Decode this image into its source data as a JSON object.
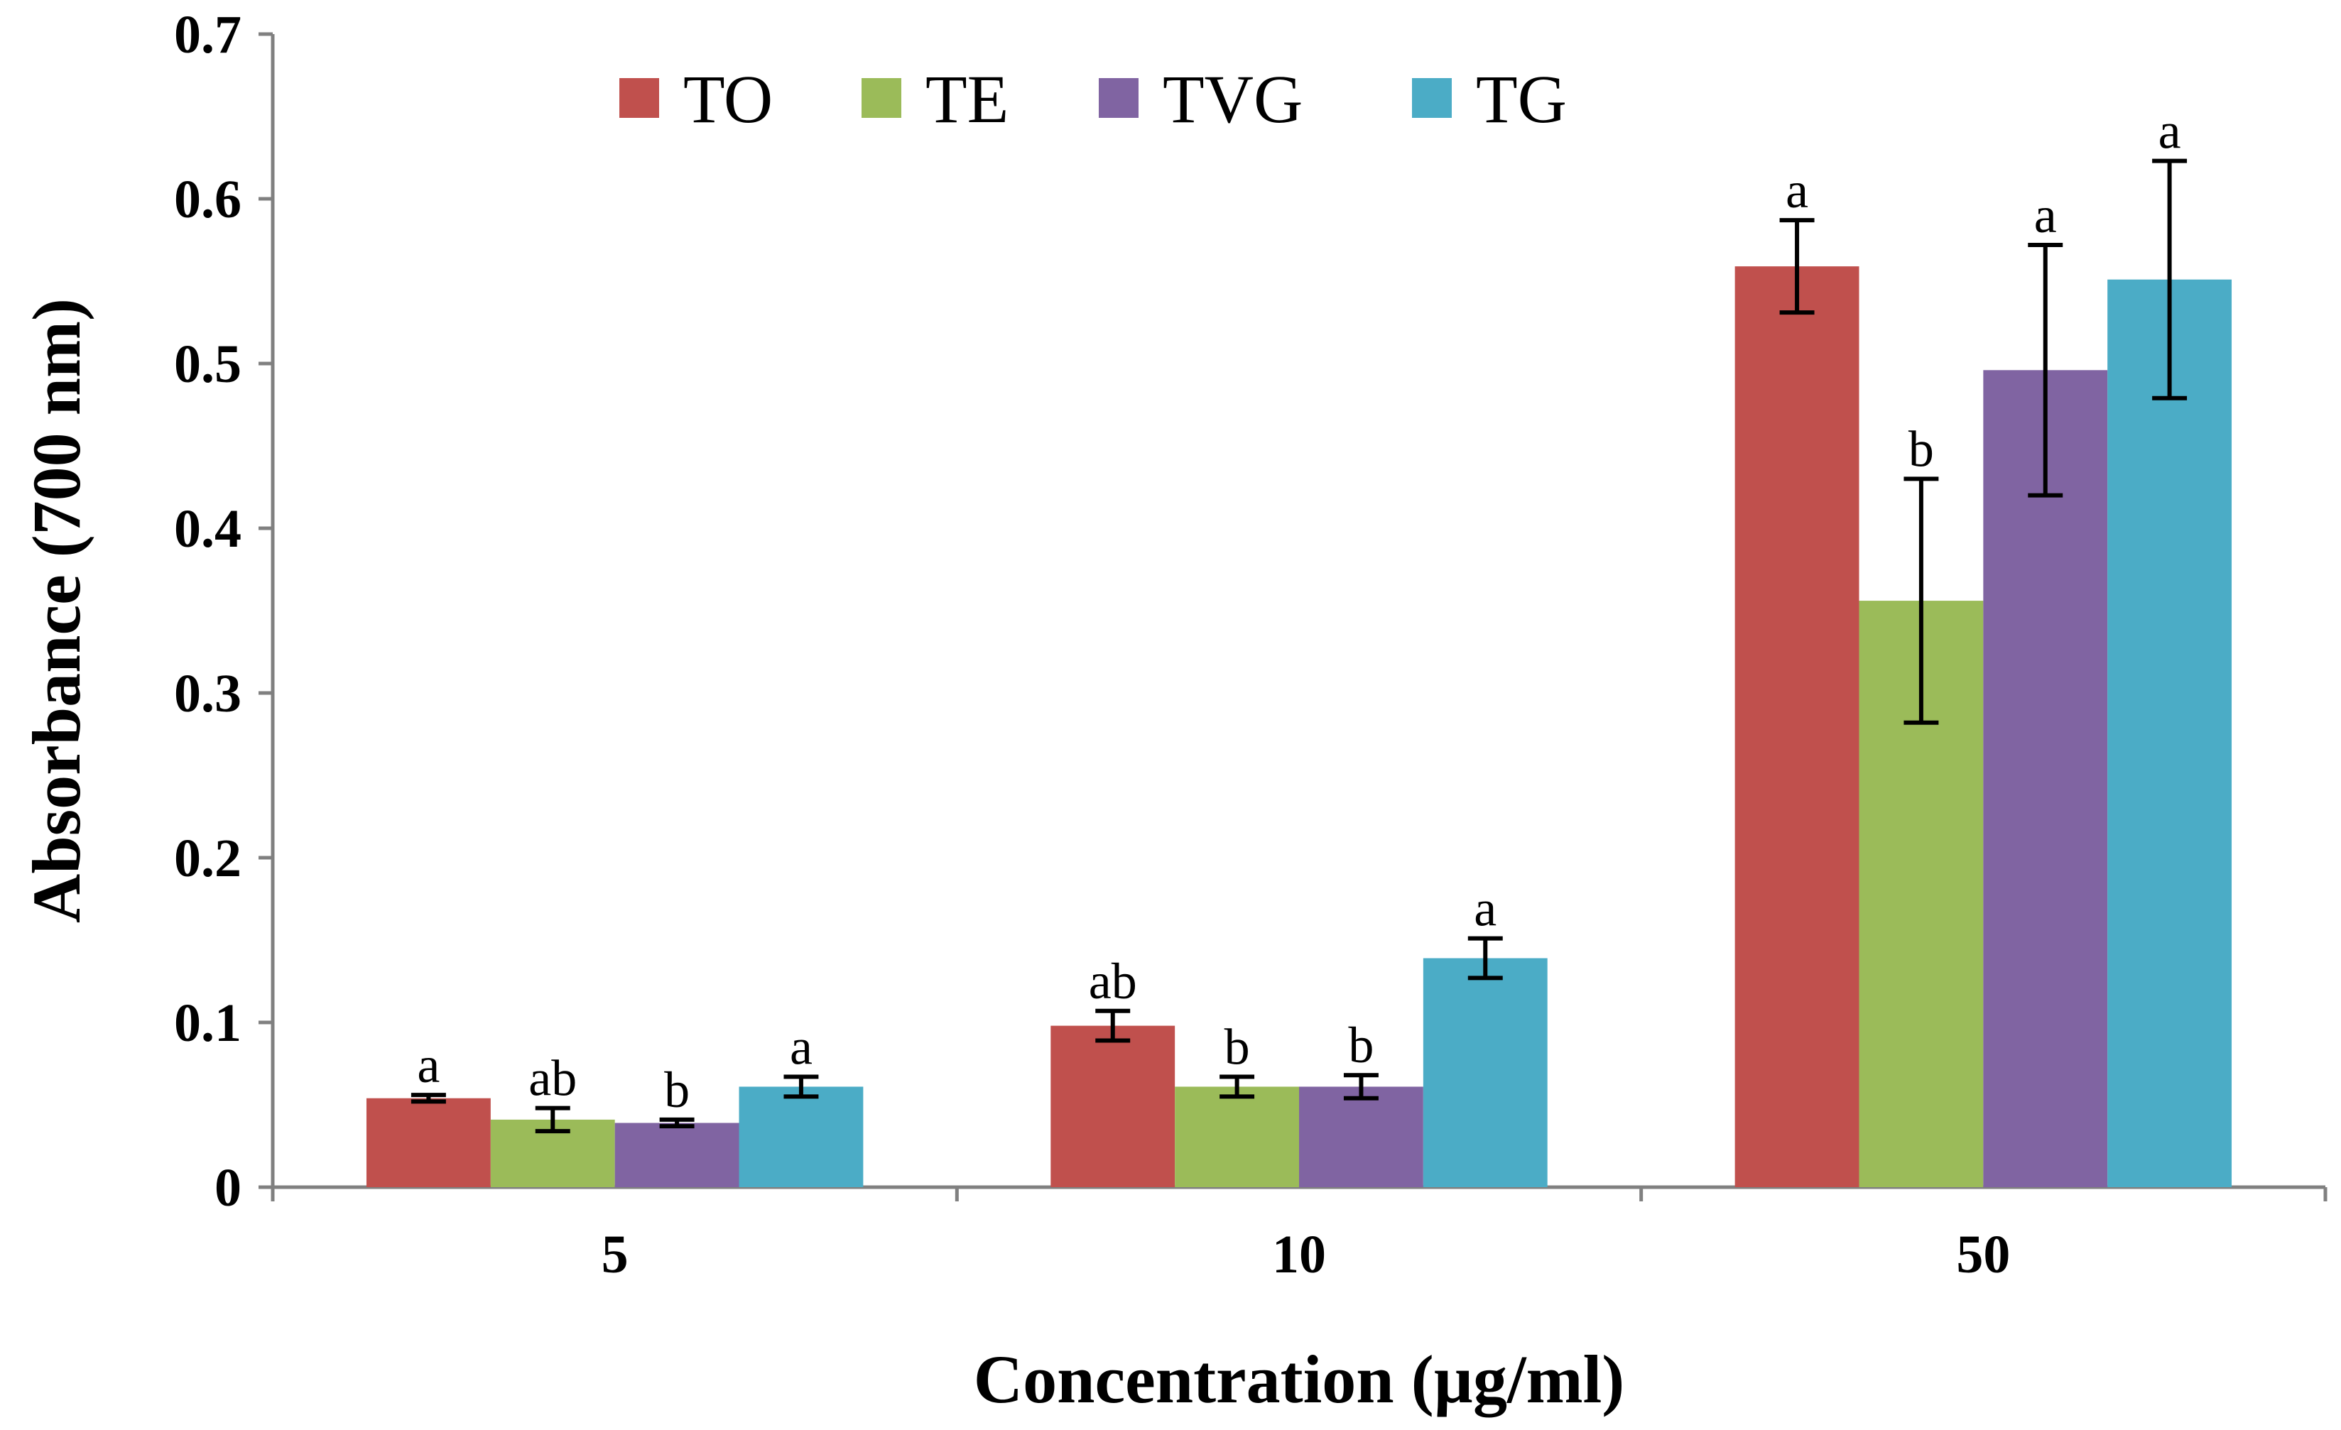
{
  "chart_data": {
    "type": "bar",
    "title": "",
    "xlabel": "Concentration (µg/ml)",
    "ylabel": "Absorbance (700 nm)",
    "categories": [
      "5",
      "10",
      "50"
    ],
    "ylim": [
      0,
      0.7
    ],
    "yticks": [
      "0",
      "0.1",
      "0.2",
      "0.3",
      "0.4",
      "0.5",
      "0.6",
      "0.7"
    ],
    "legend_position": "top",
    "series": [
      {
        "name": "TO",
        "color": "#C0504D",
        "values": [
          0.054,
          0.098,
          0.559
        ],
        "errors": [
          0.002,
          0.009,
          0.028
        ],
        "labels": [
          "a",
          "ab",
          "a"
        ]
      },
      {
        "name": "TE",
        "color": "#9BBB59",
        "values": [
          0.041,
          0.061,
          0.356
        ],
        "errors": [
          0.007,
          0.006,
          0.074
        ],
        "labels": [
          "ab",
          "b",
          "b"
        ]
      },
      {
        "name": "TVG",
        "color": "#8064A2",
        "values": [
          0.039,
          0.061,
          0.496
        ],
        "errors": [
          0.002,
          0.007,
          0.076
        ],
        "labels": [
          "b",
          "b",
          "a"
        ]
      },
      {
        "name": "TG",
        "color": "#4BACC6",
        "values": [
          0.061,
          0.139,
          0.551
        ],
        "errors": [
          0.006,
          0.012,
          0.072
        ],
        "labels": [
          "a",
          "a",
          "a"
        ]
      }
    ]
  }
}
